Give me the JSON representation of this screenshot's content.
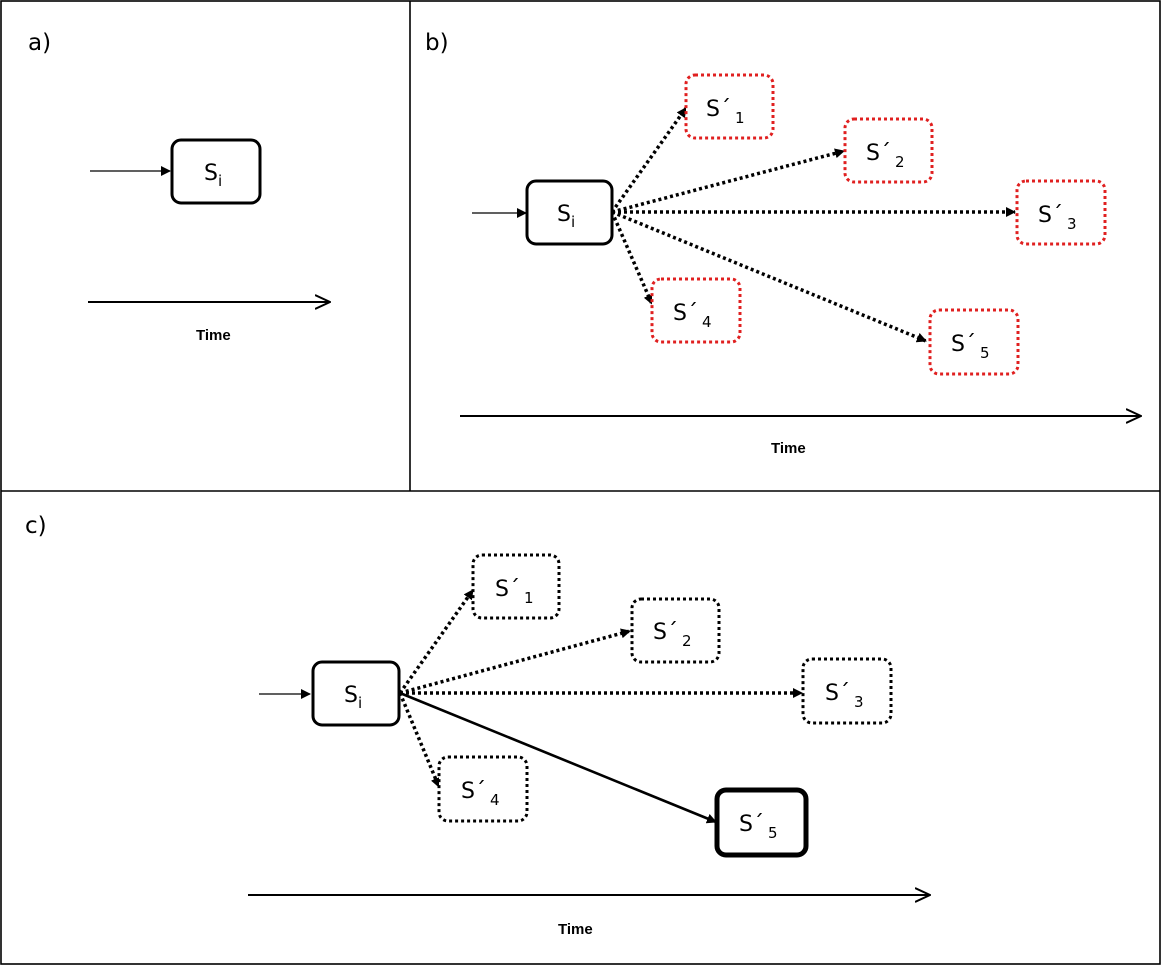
{
  "panels": {
    "a": {
      "label": "a)",
      "state_main": "S",
      "state_sub": "i",
      "time_label": "Time"
    },
    "b": {
      "label": "b)",
      "state_main": "S",
      "state_sub": "i",
      "time_label": "Time",
      "candidates": [
        {
          "main": "S´",
          "sub": "1"
        },
        {
          "main": "S´",
          "sub": "2"
        },
        {
          "main": "S´",
          "sub": "3"
        },
        {
          "main": "S´",
          "sub": "4"
        },
        {
          "main": "S´",
          "sub": "5"
        }
      ]
    },
    "c": {
      "label": "c)",
      "state_main": "S",
      "state_sub": "i",
      "time_label": "Time",
      "candidates": [
        {
          "main": "S´",
          "sub": "1"
        },
        {
          "main": "S´",
          "sub": "2"
        },
        {
          "main": "S´",
          "sub": "3"
        },
        {
          "main": "S´",
          "sub": "4"
        },
        {
          "main": "S´",
          "sub": "5"
        }
      ]
    }
  },
  "colors": {
    "candidate_outline_b": "#e02020",
    "line": "#000000"
  }
}
